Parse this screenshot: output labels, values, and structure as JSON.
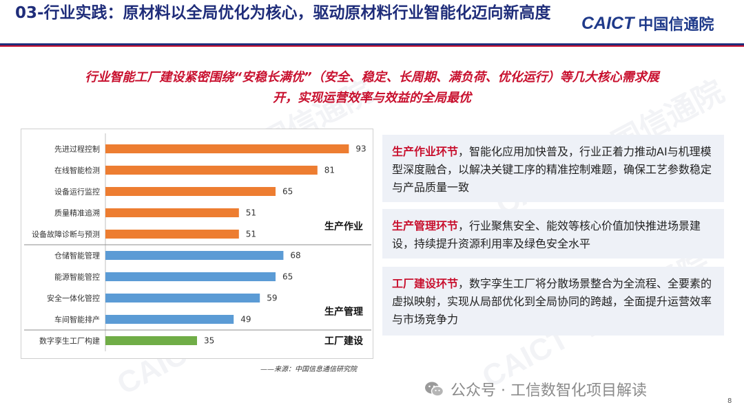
{
  "header": {
    "title": "03-行业实践：原材料以全局优化为核心，驱动原材料行业智能化迈向新高度",
    "logo_latin": "CAICT",
    "logo_cn": "中国信通院"
  },
  "subtitle": {
    "line1": "行业智能工厂建设紧密围绕“安稳长满优”（安全、稳定、长周期、满负荷、优化运行）等几大核心需求展",
    "line2": "开，实现运营效率与效益的全局最优"
  },
  "watermark": "CAICT 中国信通院",
  "chart_data": {
    "type": "bar",
    "orientation": "horizontal",
    "categories": [
      "先进过程控制",
      "在线智能检测",
      "设备运行监控",
      "质量精准追溯",
      "设备故障诊断与预测",
      "仓储智能管理",
      "能源智能管控",
      "安全一体化管控",
      "车间智能排产",
      "数字孪生工厂构建"
    ],
    "values": [
      93,
      81,
      65,
      51,
      51,
      68,
      65,
      59,
      49,
      35
    ],
    "groups": [
      {
        "name": "生产作业",
        "start": 0,
        "end": 4,
        "color": "#ed7d31"
      },
      {
        "name": "生产管理",
        "start": 5,
        "end": 8,
        "color": "#5b9bd5"
      },
      {
        "name": "工厂建设",
        "start": 9,
        "end": 9,
        "color": "#70ad47"
      }
    ],
    "xlim": [
      0,
      100
    ],
    "grid": false,
    "data_labels": true
  },
  "source": "——来源：中国信息通信研究院",
  "cards": [
    {
      "highlight": "生产作业环节",
      "text": "，智能化应用加快普及，行业正着力推动AI与机理模型深度融合，以解决关键工序的精准控制难题，确保工艺参数稳定与产品质量一致"
    },
    {
      "highlight": "生产管理环节",
      "text": "，行业聚焦安全、能效等核心价值加快推进场景建设，持续提升资源利用率及绿色安全水平"
    },
    {
      "highlight": "工厂建设环节",
      "text": "，数字孪生工厂将分散场景整合为全流程、全要素的虚拟映射，实现从局部优化到全局协同的跨越，全面提升运营效率与市场竞争力"
    }
  ],
  "footer": {
    "wechat_text": "公众号 · 工信数智化项目解读",
    "page_number": "8"
  }
}
